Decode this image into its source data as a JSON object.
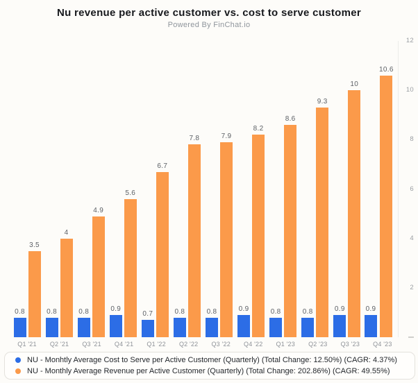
{
  "header": {
    "title": "Nu revenue per active customer vs. cost to serve customer",
    "subtitle": "Powered By FinChat.io"
  },
  "colors": {
    "cost_series": "#2c6de6",
    "revenue_series": "#fb9a4a",
    "axis_line": "#ececea",
    "tick_label": "#9a9ea3",
    "value_label": "#5d6166",
    "x_label": "#8e9298",
    "background": "#fdfcf9",
    "legend_border": "#e4e2dd",
    "legend_background": "#fffefc"
  },
  "chart_data": {
    "type": "bar",
    "title": "Nu revenue per active customer vs. cost to serve customer",
    "subtitle": "Powered By FinChat.io",
    "categories": [
      "Q1 '21",
      "Q2 '21",
      "Q3 '21",
      "Q4 '21",
      "Q1 '22",
      "Q2 '22",
      "Q3 '22",
      "Q4 '22",
      "Q1 '23",
      "Q2 '23",
      "Q3 '23",
      "Q4 '23"
    ],
    "series": [
      {
        "name": "NU - Monhtly Average Cost to Serve per Active Customer (Quarterly) (Total Change: 12.50%) (CAGR: 4.37%)",
        "color": "#2c6de6",
        "values": [
          0.8,
          0.8,
          0.8,
          0.9,
          0.7,
          0.8,
          0.8,
          0.9,
          0.8,
          0.8,
          0.9,
          0.9
        ]
      },
      {
        "name": "NU - Monthly Average Revenue per Active Customer (Quarterly) (Total Change: 202.86%) (CAGR: 49.55%)",
        "color": "#fb9a4a",
        "values": [
          3.5,
          4,
          4.9,
          5.6,
          6.7,
          7.8,
          7.9,
          8.2,
          8.6,
          9.3,
          10,
          10.6
        ]
      }
    ],
    "y_axis": {
      "min": 0,
      "max": 12,
      "ticks": [
        2,
        4,
        6,
        8,
        10,
        12
      ],
      "position": "right"
    },
    "grid": false,
    "legend_position": "bottom",
    "value_labels": true
  }
}
